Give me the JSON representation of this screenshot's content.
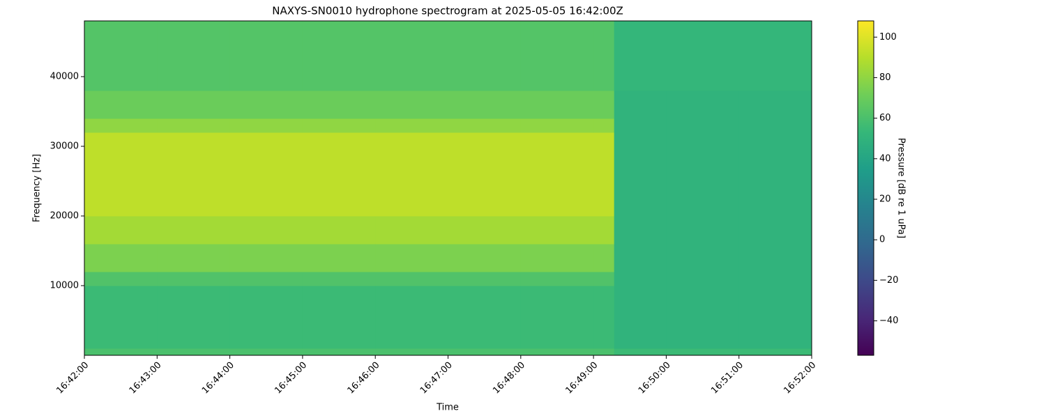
{
  "chart_data": {
    "type": "heatmap",
    "title": "NAXYS-SN0010 hydrophone spectrogram at 2025-05-05 16:42:00Z",
    "x_label": "Time",
    "y_label": "Frequency [Hz]",
    "colorbar_label": "Pressure [dB re 1 uPa]",
    "colormap": "viridis",
    "x_edges": [
      "16:42:00",
      "16:43:00",
      "16:44:00",
      "16:45:00",
      "16:46:00",
      "16:47:00",
      "16:48:00",
      "16:49:00",
      "16:49:17",
      "16:50:00",
      "16:51:00",
      "16:52:00"
    ],
    "y_edges": [
      0,
      1000,
      10000,
      12000,
      16000,
      20000,
      32000,
      34000,
      38000,
      48000
    ],
    "z": [
      [
        60,
        60,
        60,
        60,
        60,
        60,
        60,
        60,
        55,
        55,
        55
      ],
      [
        55,
        55,
        55,
        55,
        55,
        55,
        55,
        55,
        50,
        50,
        50
      ],
      [
        62,
        62,
        62,
        62,
        62,
        62,
        62,
        62,
        50,
        50,
        50
      ],
      [
        75,
        75,
        75,
        75,
        75,
        75,
        75,
        75,
        50,
        50,
        50
      ],
      [
        85,
        85,
        85,
        85,
        85,
        85,
        85,
        85,
        50,
        50,
        50
      ],
      [
        92,
        92,
        92,
        92,
        92,
        92,
        92,
        92,
        50,
        50,
        50
      ],
      [
        80,
        80,
        80,
        80,
        80,
        80,
        80,
        80,
        50,
        50,
        50
      ],
      [
        70,
        70,
        70,
        70,
        70,
        70,
        70,
        70,
        50,
        50,
        50
      ],
      [
        63,
        63,
        63,
        63,
        63,
        63,
        63,
        63,
        52,
        52,
        52
      ]
    ],
    "xlim": [
      "16:42:00",
      "16:52:00"
    ],
    "xticks": [
      "16:42:00",
      "16:43:00",
      "16:44:00",
      "16:45:00",
      "16:46:00",
      "16:47:00",
      "16:48:00",
      "16:49:00",
      "16:50:00",
      "16:51:00",
      "16:52:00"
    ],
    "ylim": [
      0,
      48000
    ],
    "yticks": [
      10000,
      20000,
      30000,
      40000
    ],
    "clim": [
      -57,
      108
    ],
    "cticks": [
      {
        "value": -40,
        "label": "−40"
      },
      {
        "value": -20,
        "label": "−20"
      },
      0,
      20,
      40,
      60,
      80,
      100
    ]
  }
}
